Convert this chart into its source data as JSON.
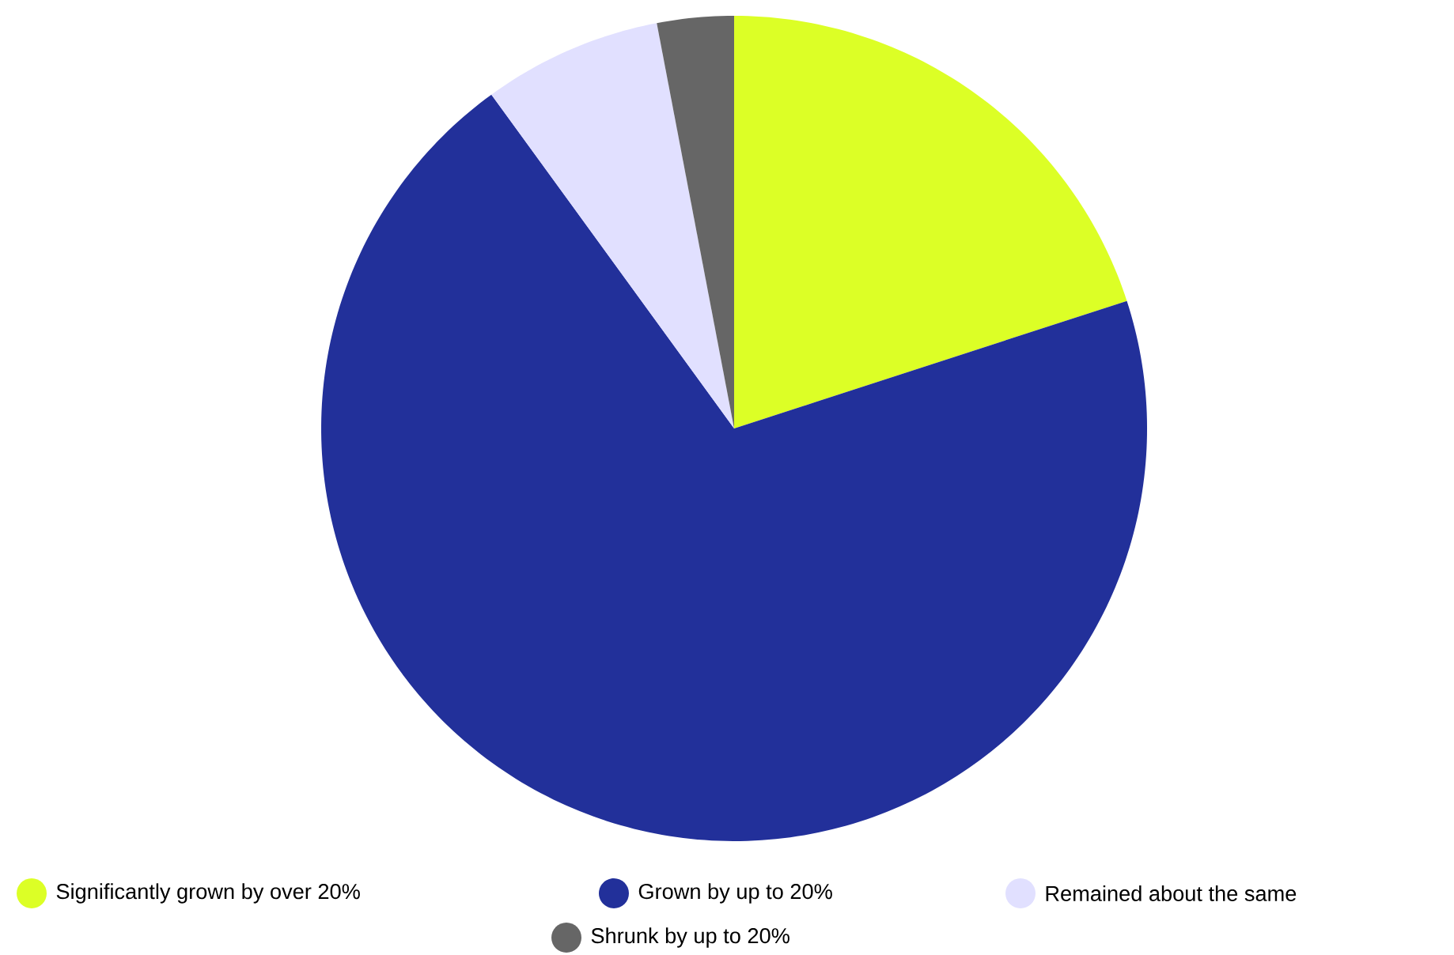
{
  "chart_data": {
    "type": "pie",
    "categories": [
      "Significantly grown by over 20%",
      "Grown by up to 20%",
      "Remained about the same",
      "Shrunk by up to 20%"
    ],
    "values": [
      20,
      70,
      7,
      3
    ],
    "colors": [
      "#dcff26",
      "#22309a",
      "#e1e0ff",
      "#666666"
    ],
    "legend": "bottom"
  }
}
